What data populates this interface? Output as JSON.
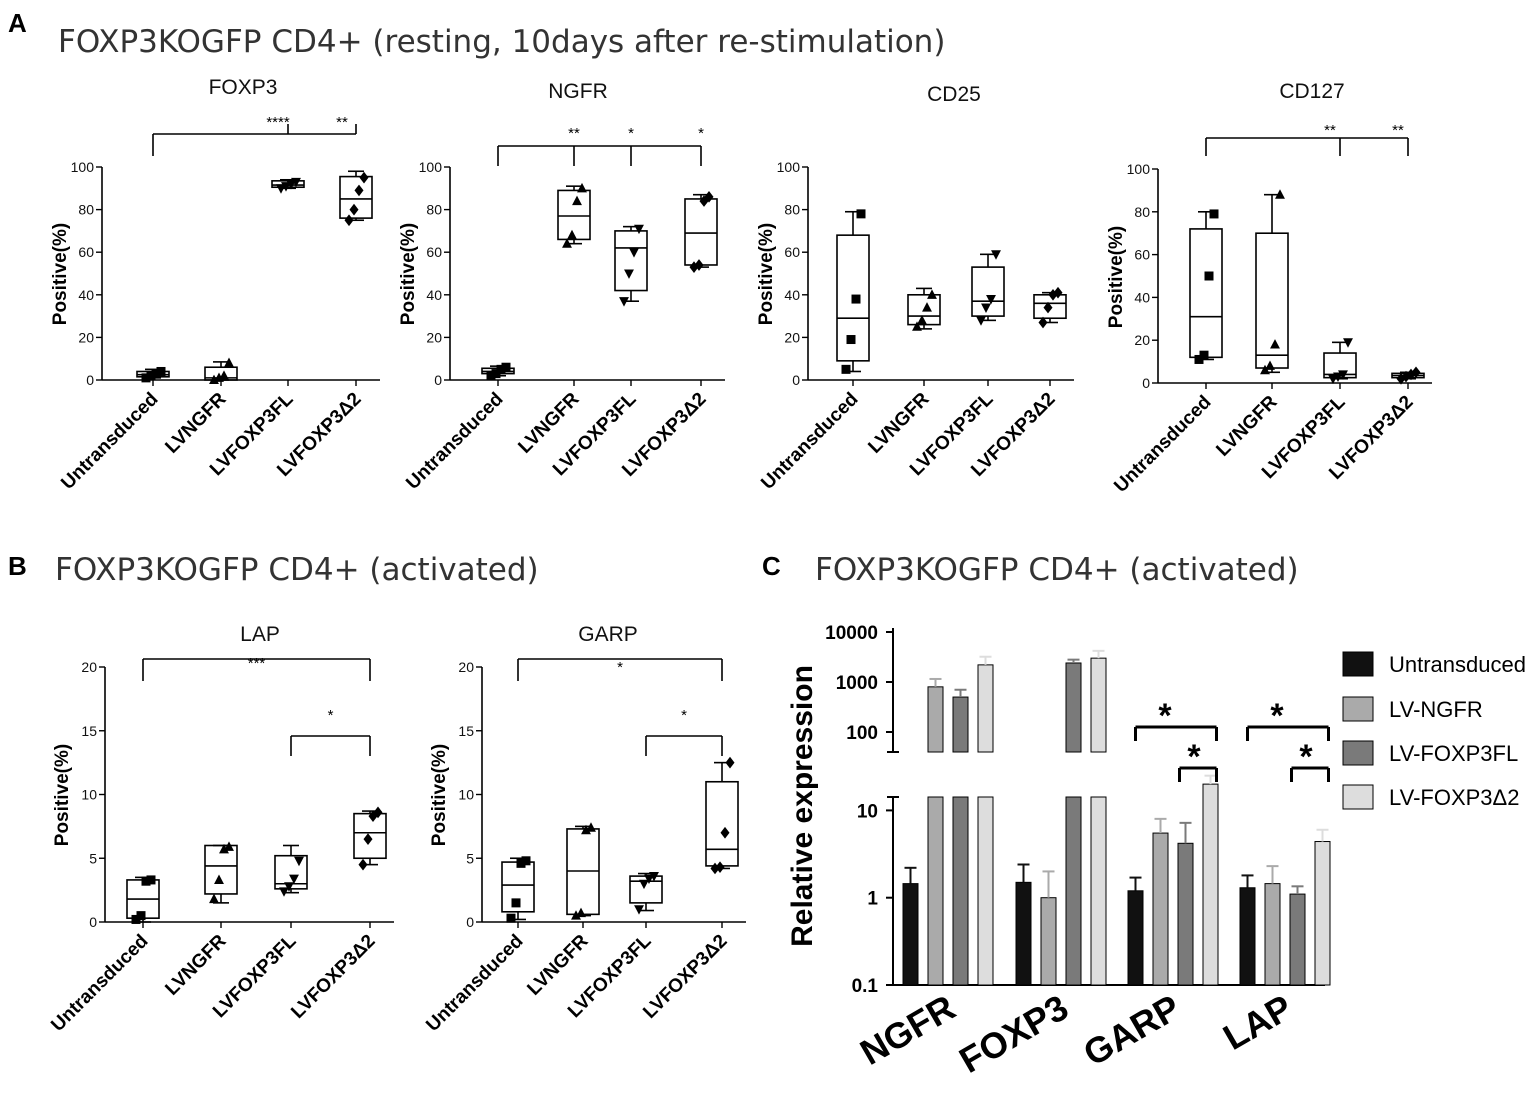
{
  "panels": {
    "A": {
      "letter": "A",
      "heading": "FOXP3KOGFP CD4+ (resting, 10days after re-stimulation)"
    },
    "B": {
      "letter": "B",
      "heading": "FOXP3KOGFP CD4+ (activated)"
    },
    "C": {
      "letter": "C",
      "heading": "FOXP3KOGFP CD4+ (activated)"
    }
  },
  "chart_data": [
    {
      "id": "A-FOXP3",
      "type": "box",
      "title": "FOXP3",
      "ylabel": "Positive(%)",
      "ylim": [
        0,
        100
      ],
      "yticks": [
        0,
        20,
        40,
        60,
        80,
        100
      ],
      "categories": [
        "Untransduced",
        "LVNGFR",
        "LVFOXP3FL",
        "LVFOXP3Δ2"
      ],
      "boxes": [
        {
          "min": 1,
          "q1": 1.5,
          "median": 2.5,
          "q3": 4,
          "max": 5,
          "points": [
            1,
            2,
            3,
            4
          ]
        },
        {
          "min": 0,
          "q1": 0,
          "median": 1,
          "q3": 6,
          "max": 8.5,
          "points": [
            0,
            1,
            2,
            8
          ]
        },
        {
          "min": 90,
          "q1": 90.5,
          "median": 91.5,
          "q3": 93.5,
          "max": 94,
          "points": [
            90,
            91,
            92,
            93
          ]
        },
        {
          "min": 75,
          "q1": 76,
          "median": 85,
          "q3": 95.5,
          "max": 98,
          "points": [
            75,
            80,
            89,
            95
          ]
        }
      ],
      "markers": [
        "square",
        "triangle-up",
        "triangle-down",
        "diamond"
      ],
      "significance": [
        {
          "from": 0,
          "to": [
            2,
            3
          ],
          "label": "****",
          "label_at": 2
        },
        {
          "label": "**",
          "label_at": 3
        }
      ]
    },
    {
      "id": "A-NGFR",
      "type": "box",
      "title": "NGFR",
      "ylabel": "Positive(%)",
      "ylim": [
        0,
        100
      ],
      "yticks": [
        0,
        20,
        40,
        60,
        80,
        100
      ],
      "categories": [
        "Untransduced",
        "LVNGFR",
        "LVFOXP3FL",
        "LVFOXP3Δ2"
      ],
      "boxes": [
        {
          "min": 2,
          "q1": 3,
          "median": 4,
          "q3": 5.5,
          "max": 6.5,
          "points": [
            2,
            3,
            5,
            6
          ]
        },
        {
          "min": 64,
          "q1": 66,
          "median": 77,
          "q3": 89,
          "max": 91,
          "points": [
            64,
            68,
            84,
            90
          ]
        },
        {
          "min": 37,
          "q1": 42,
          "median": 62,
          "q3": 70,
          "max": 72,
          "points": [
            37,
            50,
            60,
            71
          ]
        },
        {
          "min": 53,
          "q1": 54,
          "median": 69,
          "q3": 85,
          "max": 87,
          "points": [
            53,
            54,
            84,
            86
          ]
        }
      ],
      "markers": [
        "square",
        "triangle-up",
        "triangle-down",
        "diamond"
      ],
      "significance": [
        {
          "from": 0,
          "to": [
            1,
            2,
            3
          ],
          "labels": [
            "**",
            "*",
            "*"
          ]
        }
      ]
    },
    {
      "id": "A-CD25",
      "type": "box",
      "title": "CD25",
      "ylabel": "Positive(%)",
      "ylim": [
        0,
        100
      ],
      "yticks": [
        0,
        20,
        40,
        60,
        80,
        100
      ],
      "categories": [
        "Untransduced",
        "LVNGFR",
        "LVFOXP3FL",
        "LVFOXP3Δ2"
      ],
      "boxes": [
        {
          "min": 4,
          "q1": 9,
          "median": 29,
          "q3": 68,
          "max": 79,
          "points": [
            5,
            19,
            38,
            78
          ]
        },
        {
          "min": 24,
          "q1": 26,
          "median": 30,
          "q3": 40,
          "max": 43,
          "points": [
            25,
            28,
            34,
            40
          ]
        },
        {
          "min": 28,
          "q1": 30,
          "median": 37,
          "q3": 53,
          "max": 59,
          "points": [
            28,
            34,
            38,
            59
          ]
        },
        {
          "min": 27,
          "q1": 29,
          "median": 36,
          "q3": 40,
          "max": 41,
          "points": [
            27,
            34,
            40,
            41
          ]
        }
      ],
      "markers": [
        "square",
        "triangle-up",
        "triangle-down",
        "diamond"
      ],
      "significance": []
    },
    {
      "id": "A-CD127",
      "type": "box",
      "title": "CD127",
      "ylabel": "Positive(%)",
      "ylim": [
        0,
        100
      ],
      "yticks": [
        0,
        20,
        40,
        60,
        80,
        100
      ],
      "categories": [
        "Untransduced",
        "LVNGFR",
        "LVFOXP3FL",
        "LVFOXP3Δ2"
      ],
      "boxes": [
        {
          "min": 11,
          "q1": 12,
          "median": 31,
          "q3": 72,
          "max": 80,
          "points": [
            11,
            13,
            50,
            79
          ]
        },
        {
          "min": 5,
          "q1": 7,
          "median": 13,
          "q3": 70,
          "max": 88,
          "points": [
            6,
            8,
            18,
            88
          ]
        },
        {
          "min": 2,
          "q1": 2.5,
          "median": 4,
          "q3": 14,
          "max": 19,
          "points": [
            2,
            3,
            4,
            19
          ]
        },
        {
          "min": 2,
          "q1": 2.5,
          "median": 3.5,
          "q3": 4.5,
          "max": 5,
          "points": [
            2,
            3,
            4,
            5
          ]
        }
      ],
      "markers": [
        "square",
        "triangle-up",
        "triangle-down",
        "diamond"
      ],
      "significance": [
        {
          "from": 0,
          "to": [
            2,
            3
          ],
          "labels": [
            "**",
            "**"
          ]
        }
      ]
    },
    {
      "id": "B-LAP",
      "type": "box",
      "title": "LAP",
      "ylabel": "Positive(%)",
      "ylim": [
        0,
        20
      ],
      "yticks": [
        0,
        5,
        10,
        15,
        20
      ],
      "categories": [
        "Untransduced",
        "LVNGFR",
        "LVFOXP3FL",
        "LVFOXP3Δ2"
      ],
      "boxes": [
        {
          "min": 0,
          "q1": 0.3,
          "median": 1.8,
          "q3": 3.3,
          "max": 3.5,
          "points": [
            0.2,
            0.5,
            3.2,
            3.3
          ]
        },
        {
          "min": 1.5,
          "q1": 2.2,
          "median": 4.4,
          "q3": 6,
          "max": 6,
          "points": [
            1.8,
            3.3,
            5.7,
            5.9
          ]
        },
        {
          "min": 2.3,
          "q1": 2.6,
          "median": 3,
          "q3": 5.2,
          "max": 6,
          "points": [
            2.4,
            2.8,
            3.4,
            4.8
          ]
        },
        {
          "min": 4.5,
          "q1": 5,
          "median": 7,
          "q3": 8.5,
          "max": 8.7,
          "points": [
            4.5,
            6.5,
            8.3,
            8.6
          ]
        }
      ],
      "markers": [
        "square",
        "triangle-up",
        "triangle-down",
        "diamond"
      ],
      "significance": [
        {
          "from": 0,
          "to": [
            3
          ],
          "labels": [
            "***"
          ]
        },
        {
          "from": 2,
          "to": [
            3
          ],
          "labels": [
            "*"
          ]
        }
      ]
    },
    {
      "id": "B-GARP",
      "type": "box",
      "title": "GARP",
      "ylabel": "Positive(%)",
      "ylim": [
        0,
        20
      ],
      "yticks": [
        0,
        5,
        10,
        15,
        20
      ],
      "categories": [
        "Untransduced",
        "LVNGFR",
        "LVFOXP3FL",
        "LVFOXP3Δ2"
      ],
      "boxes": [
        {
          "min": 0.2,
          "q1": 0.8,
          "median": 2.9,
          "q3": 4.7,
          "max": 5,
          "points": [
            0.3,
            1.5,
            4.6,
            4.8
          ]
        },
        {
          "min": 0.5,
          "q1": 0.6,
          "median": 4,
          "q3": 7.3,
          "max": 7.5,
          "points": [
            0.5,
            0.7,
            7.2,
            7.4
          ]
        },
        {
          "min": 0.9,
          "q1": 1.5,
          "median": 3.2,
          "q3": 3.6,
          "max": 3.8,
          "points": [
            1,
            3,
            3.4,
            3.6
          ]
        },
        {
          "min": 4.2,
          "q1": 4.4,
          "median": 5.7,
          "q3": 11,
          "max": 12.5,
          "points": [
            4.2,
            4.3,
            7,
            12.5
          ]
        }
      ],
      "markers": [
        "square",
        "triangle-up",
        "triangle-down",
        "diamond"
      ],
      "significance": [
        {
          "from": 0,
          "to": [
            3
          ],
          "labels": [
            "*"
          ]
        },
        {
          "from": 2,
          "to": [
            3
          ],
          "labels": [
            "*"
          ]
        }
      ]
    },
    {
      "id": "C-relative",
      "type": "bar",
      "scale": "log-broken",
      "ylabel": "Relative expression",
      "yticks": [
        0.1,
        1,
        10,
        100,
        1000,
        10000
      ],
      "categories": [
        "NGFR",
        "FOXP3",
        "GARP",
        "LAP"
      ],
      "series": [
        {
          "name": "Untransduced",
          "color": "#111111",
          "values": [
            1.45,
            1.5,
            1.2,
            1.3
          ],
          "errors": [
            2.2,
            2.4,
            1.7,
            1.8
          ]
        },
        {
          "name": "LV-NGFR",
          "color": "#aaaaaa",
          "values": [
            800,
            1.0,
            5.5,
            1.45
          ],
          "errors": [
            1150,
            2.0,
            8,
            2.3
          ]
        },
        {
          "name": "LV-FOXP3FL",
          "color": "#7a7a7a",
          "values": [
            500,
            2400,
            4.2,
            1.1
          ],
          "errors": [
            700,
            2800,
            7.2,
            1.35
          ]
        },
        {
          "name": "LV-FOXP3Δ2",
          "color": "#dddddd",
          "values": [
            2200,
            3000,
            20,
            4.4
          ],
          "errors": [
            3200,
            4200,
            25,
            6
          ]
        }
      ],
      "significance": [
        {
          "category": "GARP",
          "from": 0,
          "to": 3,
          "label": "*"
        },
        {
          "category": "GARP",
          "from": 2,
          "to": 3,
          "label": "*"
        },
        {
          "category": "LAP",
          "from": 0,
          "to": 3,
          "label": "*"
        },
        {
          "category": "LAP",
          "from": 2,
          "to": 3,
          "label": "*"
        }
      ]
    }
  ]
}
